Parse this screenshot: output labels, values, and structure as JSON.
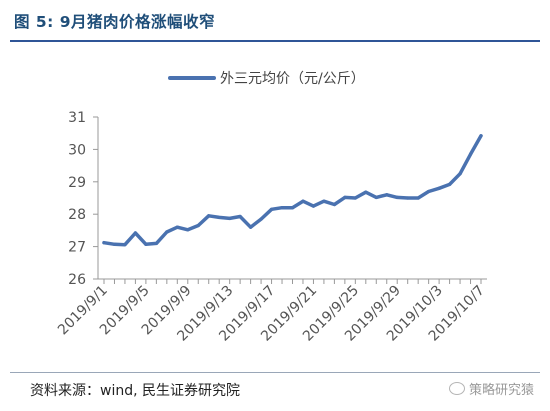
{
  "figure": {
    "title": "图 5: 9月猪肉价格涨幅收窄",
    "source": "资料来源：wind, 民生证券研究院",
    "watermark": "策略研究猿"
  },
  "colors": {
    "series": "#4a72b0",
    "title": "#1f4e79",
    "rule": "#2f5597",
    "axis": "#999999"
  },
  "chart_data": {
    "type": "line",
    "title": "",
    "xlabel": "",
    "ylabel": "",
    "ylim": [
      26,
      31
    ],
    "yticks": [
      26,
      27,
      28,
      29,
      30,
      31
    ],
    "grid": false,
    "legend_position": "top-center",
    "x": [
      "2019/9/1",
      "2019/9/2",
      "2019/9/3",
      "2019/9/4",
      "2019/9/5",
      "2019/9/6",
      "2019/9/7",
      "2019/9/8",
      "2019/9/9",
      "2019/9/10",
      "2019/9/11",
      "2019/9/12",
      "2019/9/13",
      "2019/9/14",
      "2019/9/15",
      "2019/9/16",
      "2019/9/17",
      "2019/9/18",
      "2019/9/19",
      "2019/9/20",
      "2019/9/21",
      "2019/9/22",
      "2019/9/23",
      "2019/9/24",
      "2019/9/25",
      "2019/9/26",
      "2019/9/27",
      "2019/9/28",
      "2019/9/29",
      "2019/9/30",
      "2019/10/1",
      "2019/10/2",
      "2019/10/3",
      "2019/10/4",
      "2019/10/5",
      "2019/10/6",
      "2019/10/7"
    ],
    "x_tick_labels": [
      "2019/9/1",
      "2019/9/5",
      "2019/9/9",
      "2019/9/13",
      "2019/9/17",
      "2019/9/21",
      "2019/9/25",
      "2019/9/29",
      "2019/10/3",
      "2019/10/7"
    ],
    "series": [
      {
        "name": "外三元均价（元/公斤）",
        "values": [
          27.12,
          27.07,
          27.06,
          27.42,
          27.07,
          27.1,
          27.45,
          27.6,
          27.52,
          27.65,
          27.95,
          27.9,
          27.87,
          27.93,
          27.6,
          27.85,
          28.15,
          28.2,
          28.2,
          28.4,
          28.25,
          28.4,
          28.3,
          28.52,
          28.5,
          28.68,
          28.52,
          28.6,
          28.52,
          28.5,
          28.5,
          28.7,
          28.8,
          28.92,
          29.25,
          29.85,
          30.42
        ]
      }
    ]
  }
}
